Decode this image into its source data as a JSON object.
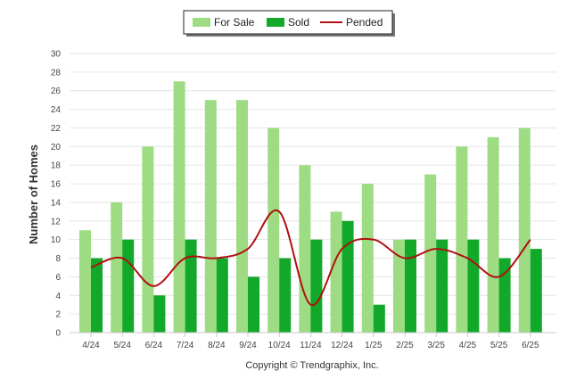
{
  "chart_data": {
    "type": "bar",
    "categories": [
      "4/24",
      "5/24",
      "6/24",
      "7/24",
      "8/24",
      "9/24",
      "10/24",
      "11/24",
      "12/24",
      "1/25",
      "2/25",
      "3/25",
      "4/25",
      "5/25",
      "6/25"
    ],
    "series": [
      {
        "name": "For Sale",
        "type": "bar",
        "color": "#9ddc83",
        "values": [
          11,
          14,
          20,
          27,
          25,
          25,
          22,
          18,
          13,
          16,
          10,
          17,
          20,
          21,
          22
        ]
      },
      {
        "name": "Sold",
        "type": "bar",
        "color": "#12a829",
        "values": [
          8,
          10,
          4,
          10,
          8,
          6,
          8,
          10,
          12,
          3,
          10,
          10,
          10,
          8,
          9
        ]
      },
      {
        "name": "Pended",
        "type": "line",
        "color": "#b01010",
        "values": [
          7,
          8,
          5,
          8,
          8,
          9,
          13,
          3,
          9,
          10,
          8,
          9,
          8,
          6,
          10
        ]
      }
    ],
    "title": "",
    "xlabel": "",
    "ylabel": "Number of Homes",
    "ylim": [
      0,
      30
    ],
    "yticks": [
      0,
      2,
      4,
      6,
      8,
      10,
      12,
      14,
      16,
      18,
      20,
      22,
      24,
      26,
      28,
      30
    ],
    "grid": true,
    "legend_position": "top-center"
  },
  "credit": "Copyright © Trendgraphix, Inc."
}
